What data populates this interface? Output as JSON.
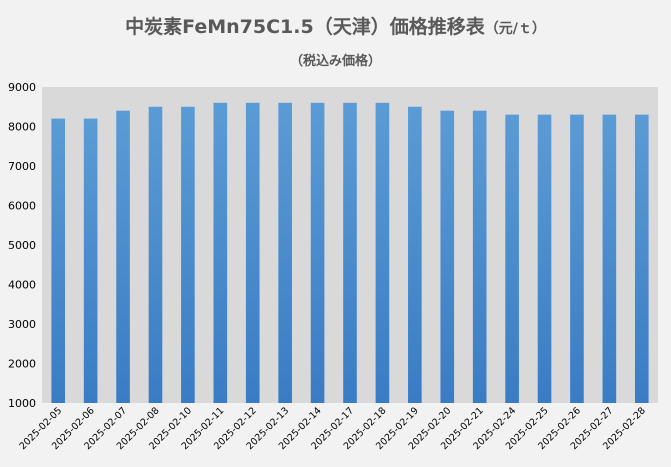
{
  "chart_data": {
    "type": "bar",
    "title": "中炭素FeMn75C1.5（天津）価格推移表",
    "title_unit": "（元/ｔ）",
    "subtitle": "（税込み価格）",
    "categories": [
      "2025-02-05",
      "2025-02-06",
      "2025-02-07",
      "2025-02-08",
      "2025-02-10",
      "2025-02-11",
      "2025-02-12",
      "2025-02-13",
      "2025-02-14",
      "2025-02-17",
      "2025-02-18",
      "2025-02-19",
      "2025-02-20",
      "2025-02-21",
      "2025-02-24",
      "2025-02-25",
      "2025-02-26",
      "2025-02-27",
      "2025-02-28"
    ],
    "values": [
      8200,
      8200,
      8400,
      8500,
      8500,
      8600,
      8600,
      8600,
      8600,
      8600,
      8600,
      8500,
      8400,
      8400,
      8300,
      8300,
      8300,
      8300,
      8300
    ],
    "ylim": [
      1000,
      9000
    ],
    "yticks": [
      1000,
      2000,
      3000,
      4000,
      5000,
      6000,
      7000,
      8000,
      9000
    ],
    "grid": false,
    "colors": {
      "bar_top": "#5b9bd5",
      "bar_bottom": "#3a7cc4",
      "plot_bg": "#d9d9d9",
      "background": "#f2f2f2",
      "text": "#595959"
    }
  }
}
